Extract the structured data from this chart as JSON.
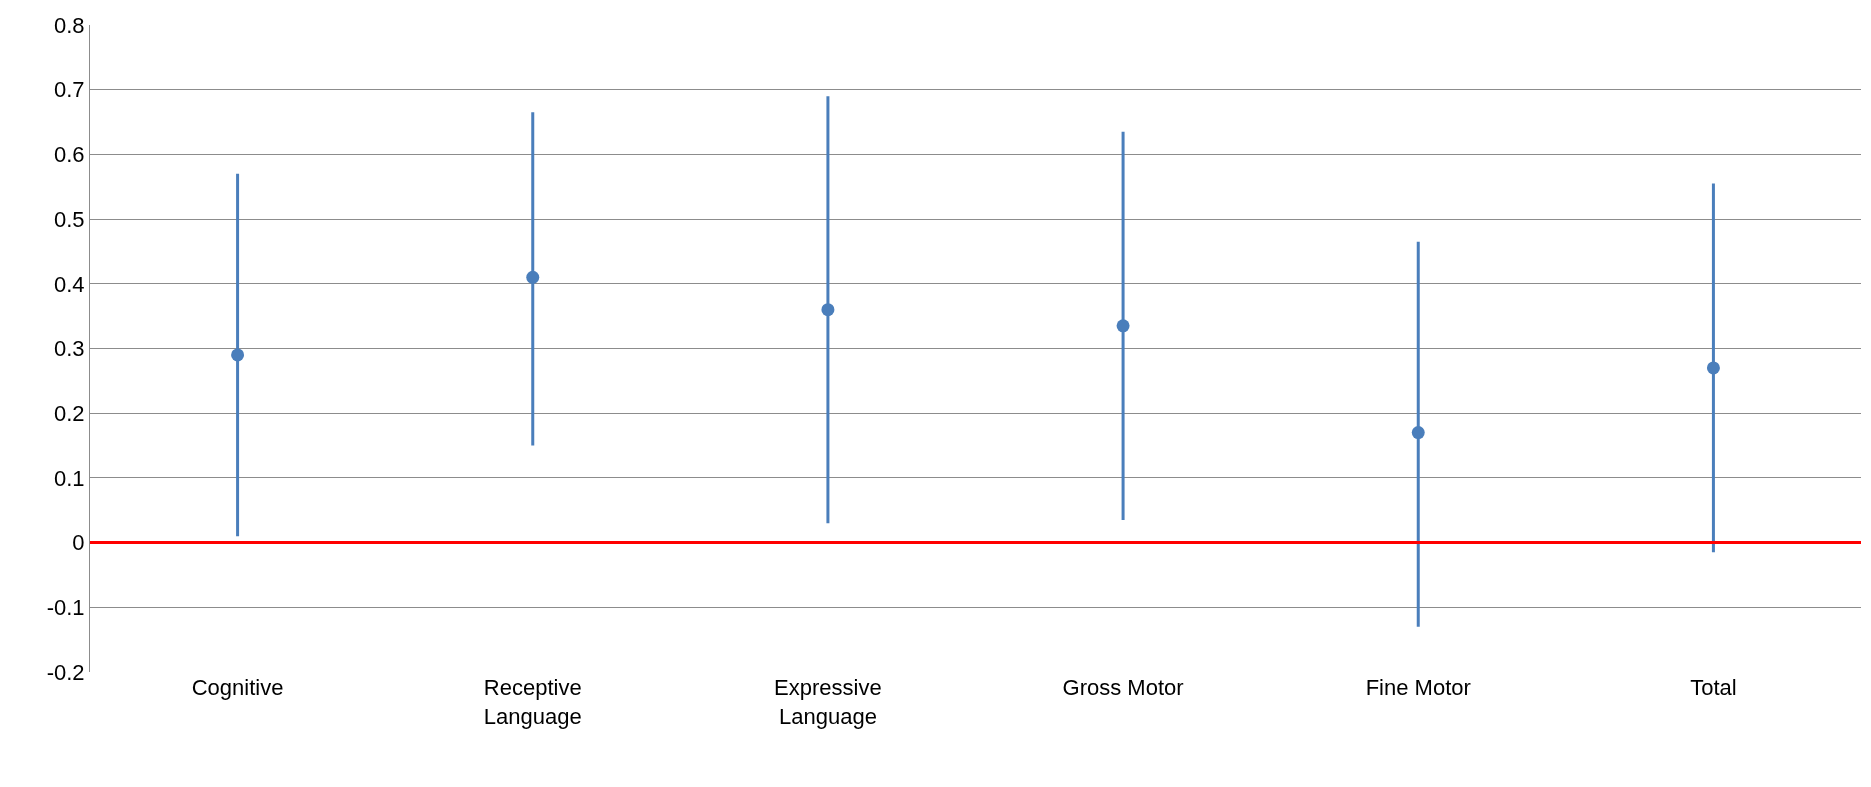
{
  "chart_data": {
    "type": "scatter",
    "categories": [
      "Cognitive",
      "Receptive Language",
      "Expressive Language",
      "Gross Motor",
      "Fine Motor",
      "Total"
    ],
    "series": [
      {
        "color": "#4a7ebb",
        "values": [
          0.29,
          0.41,
          0.36,
          0.335,
          0.17,
          0.27
        ],
        "errors": [
          [
            0.01,
            0.57
          ],
          [
            0.15,
            0.665
          ],
          [
            0.03,
            0.69
          ],
          [
            0.035,
            0.635
          ],
          [
            -0.13,
            0.465
          ],
          [
            -0.015,
            0.555
          ]
        ]
      }
    ],
    "ylim": [
      -0.2,
      0.8
    ],
    "yticks": [
      -0.2,
      -0.1,
      0,
      0.1,
      0.2,
      0.3,
      0.4,
      0.5,
      0.6,
      0.7,
      0.8
    ],
    "grid": "y",
    "marker": "circle",
    "ref_lines": [
      {
        "axis": "y",
        "value": 0,
        "color": "#ff0000"
      }
    ]
  }
}
